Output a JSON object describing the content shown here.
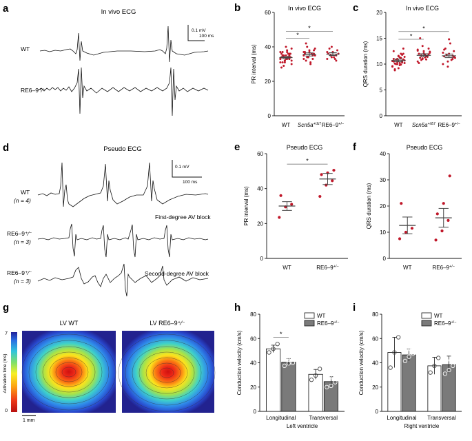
{
  "panels": {
    "a": {
      "letter": "a",
      "title": "In vivo ECG",
      "scale_mv": "0.1 mV",
      "scale_ms": "100 ms",
      "rows": [
        "WT",
        "RE6–9⁺⁄⁻"
      ]
    },
    "d": {
      "letter": "d",
      "title": "Pseudo ECG",
      "scale_mv": "0.1 mV",
      "scale_ms": "100 ms",
      "rows": [
        {
          "label": "WT",
          "n": "(n = 4)"
        },
        {
          "label": "RE6–9⁺⁄⁻",
          "n": "(n = 3)",
          "note": "First-degree AV block"
        },
        {
          "label": "RE6–9⁺⁄⁻",
          "n": "(n = 3)",
          "note": "Second-degree AV block"
        }
      ]
    },
    "g": {
      "letter": "g",
      "maps": [
        "LV WT",
        "LV RE6–9⁺⁄⁻"
      ],
      "colorbar_label": "Activation time (ms)",
      "colorbar_max": "7",
      "colorbar_min": "0",
      "scalebar": "1 mm"
    }
  },
  "colors": {
    "dot": "#c0182a",
    "grey_bar": "#7a7a7a",
    "line": "#444444"
  },
  "chart_data": [
    {
      "id": "b",
      "letter": "b",
      "type": "scatter",
      "title": "In vivo ECG",
      "ylabel": "PR interval (ms)",
      "categories": [
        "WT",
        "Scn5a+/Δ7",
        "RE6–9+/−"
      ],
      "ylim": [
        0,
        60
      ],
      "yticks": [
        0,
        20,
        40,
        60
      ],
      "means": [
        33.8,
        35.6,
        35.8
      ],
      "sem": [
        0.7,
        0.9,
        0.8
      ],
      "points": [
        [
          31,
          32,
          33,
          34,
          35,
          36,
          37,
          38,
          30,
          29,
          34,
          33,
          32,
          35,
          36,
          33,
          34,
          31,
          37,
          39,
          35,
          34,
          33,
          32,
          36,
          28,
          40,
          34,
          35,
          33,
          32,
          34,
          36,
          37,
          31,
          33
        ],
        [
          33,
          34,
          35,
          36,
          37,
          38,
          32,
          31,
          39,
          40,
          36,
          35,
          34,
          33,
          37,
          38,
          36,
          42,
          30,
          35,
          34,
          36,
          37
        ],
        [
          33,
          34,
          35,
          36,
          37,
          38,
          39,
          34,
          36,
          35,
          33,
          37,
          40,
          32,
          36
        ]
      ],
      "sig": [
        {
          "from": 0,
          "to": 1,
          "y": 45,
          "label": "*"
        },
        {
          "from": 0,
          "to": 2,
          "y": 49,
          "label": "*"
        }
      ]
    },
    {
      "id": "c",
      "letter": "c",
      "type": "scatter",
      "title": "In vivo ECG",
      "ylabel": "QRS duration (ms)",
      "categories": [
        "WT",
        "Scn5a+/Δ7",
        "RE6–9+/−"
      ],
      "ylim": [
        0,
        20
      ],
      "yticks": [
        0,
        5,
        10,
        15,
        20
      ],
      "means": [
        10.7,
        11.7,
        11.6
      ],
      "sem": [
        0.25,
        0.3,
        0.35
      ],
      "points": [
        [
          9.5,
          10,
          10.5,
          11,
          11.5,
          12,
          9,
          9.8,
          10.2,
          10.8,
          11.2,
          10.6,
          10.4,
          11.8,
          12.5,
          9.2,
          10.9,
          10.1,
          11.3,
          10.7,
          10,
          12,
          9.6,
          11,
          10.3,
          10.5,
          11.6,
          13,
          8.8,
          10.2,
          11.4,
          10.8,
          9.9,
          10.6
        ],
        [
          10.5,
          11,
          11.5,
          12,
          12.5,
          13,
          11.2,
          11.8,
          12.2,
          10.8,
          11.6,
          12.8,
          13.5,
          11.4,
          10.2,
          12.1,
          11.9,
          15,
          11.3,
          12.4,
          11.7,
          10.9,
          12.6,
          11.1
        ],
        [
          10,
          10.5,
          11,
          11.5,
          12,
          12.5,
          13,
          14,
          11.2,
          11.8,
          10.8,
          12.2,
          9.5,
          11.6,
          12.8,
          14.8,
          11.4
        ]
      ],
      "sig": [
        {
          "from": 0,
          "to": 1,
          "y": 14.8,
          "label": "*"
        },
        {
          "from": 0,
          "to": 2,
          "y": 16.3,
          "label": "*"
        }
      ]
    },
    {
      "id": "e",
      "letter": "e",
      "type": "scatter",
      "title": "Pseudo ECG",
      "ylabel": "PR interval (ms)",
      "categories": [
        "WT",
        "RE6–9+/−"
      ],
      "ylim": [
        0,
        60
      ],
      "yticks": [
        0,
        20,
        40,
        60
      ],
      "means": [
        30,
        45.5
      ],
      "sem": [
        2.5,
        3.2
      ],
      "points": [
        [
          23.5,
          29.5,
          31,
          36
        ],
        [
          35.5,
          42,
          44.5,
          48,
          49,
          50.5
        ]
      ],
      "sig": [
        {
          "from": 0,
          "to": 1,
          "y": 54,
          "label": "*"
        }
      ]
    },
    {
      "id": "f",
      "letter": "f",
      "type": "scatter",
      "title": "Pseudo ECG",
      "ylabel": "QRS duration (ms)",
      "categories": [
        "WT",
        "RE6–9+/−"
      ],
      "ylim": [
        0,
        40
      ],
      "yticks": [
        0,
        10,
        20,
        30,
        40
      ],
      "means": [
        12.6,
        15.5
      ],
      "sem": [
        3.2,
        3.6
      ],
      "points": [
        [
          7.5,
          10,
          11.5,
          21
        ],
        [
          7,
          10.5,
          14.5,
          17,
          21,
          31.5
        ]
      ],
      "sig": []
    },
    {
      "id": "h",
      "letter": "h",
      "type": "bar",
      "ylabel": "Conduction velocity (cm/s)",
      "xlabel": "Left ventricle",
      "categories": [
        "Longitudinal",
        "Transversal"
      ],
      "ylim": [
        0,
        80
      ],
      "yticks": [
        0,
        20,
        40,
        60,
        80
      ],
      "series": [
        {
          "name": "WT",
          "values": [
            51.5,
            30.5
          ],
          "err": [
            3,
            4
          ],
          "points": [
            [
              48.5,
              51.5,
              55.5
            ],
            [
              26,
              29.5,
              35
            ]
          ]
        },
        {
          "name": "RE6–9+/−",
          "values": [
            40.5,
            24.5
          ],
          "err": [
            3,
            4
          ],
          "points": [
            [
              37.5,
              39.5,
              40,
              42.5,
              44.5
            ],
            [
              20,
              21,
              24,
              27,
              29
            ]
          ]
        }
      ],
      "sig": [
        {
          "cat": 0,
          "y": 61,
          "label": "*"
        }
      ]
    },
    {
      "id": "i",
      "letter": "i",
      "type": "bar",
      "ylabel": "Conduction velocity (cm/s)",
      "xlabel": "Right ventricle",
      "categories": [
        "Longitudinal",
        "Transversal"
      ],
      "ylim": [
        0,
        80
      ],
      "yticks": [
        0,
        20,
        40,
        60,
        80
      ],
      "series": [
        {
          "name": "WT",
          "values": [
            48.5,
            37.5
          ],
          "err": [
            12.5,
            7
          ],
          "points": [
            [
              36,
              48.5,
              61
            ],
            [
              32,
              37.5,
              44
            ]
          ]
        },
        {
          "name": "RE6–9+/−",
          "values": [
            46.5,
            38.5
          ],
          "err": [
            5,
            7
          ],
          "points": [
            [
              41.5,
              45,
              47.5,
              50.5,
              53
            ],
            [
              31,
              34,
              37.5,
              42,
              47.5
            ]
          ]
        }
      ],
      "sig": []
    }
  ]
}
